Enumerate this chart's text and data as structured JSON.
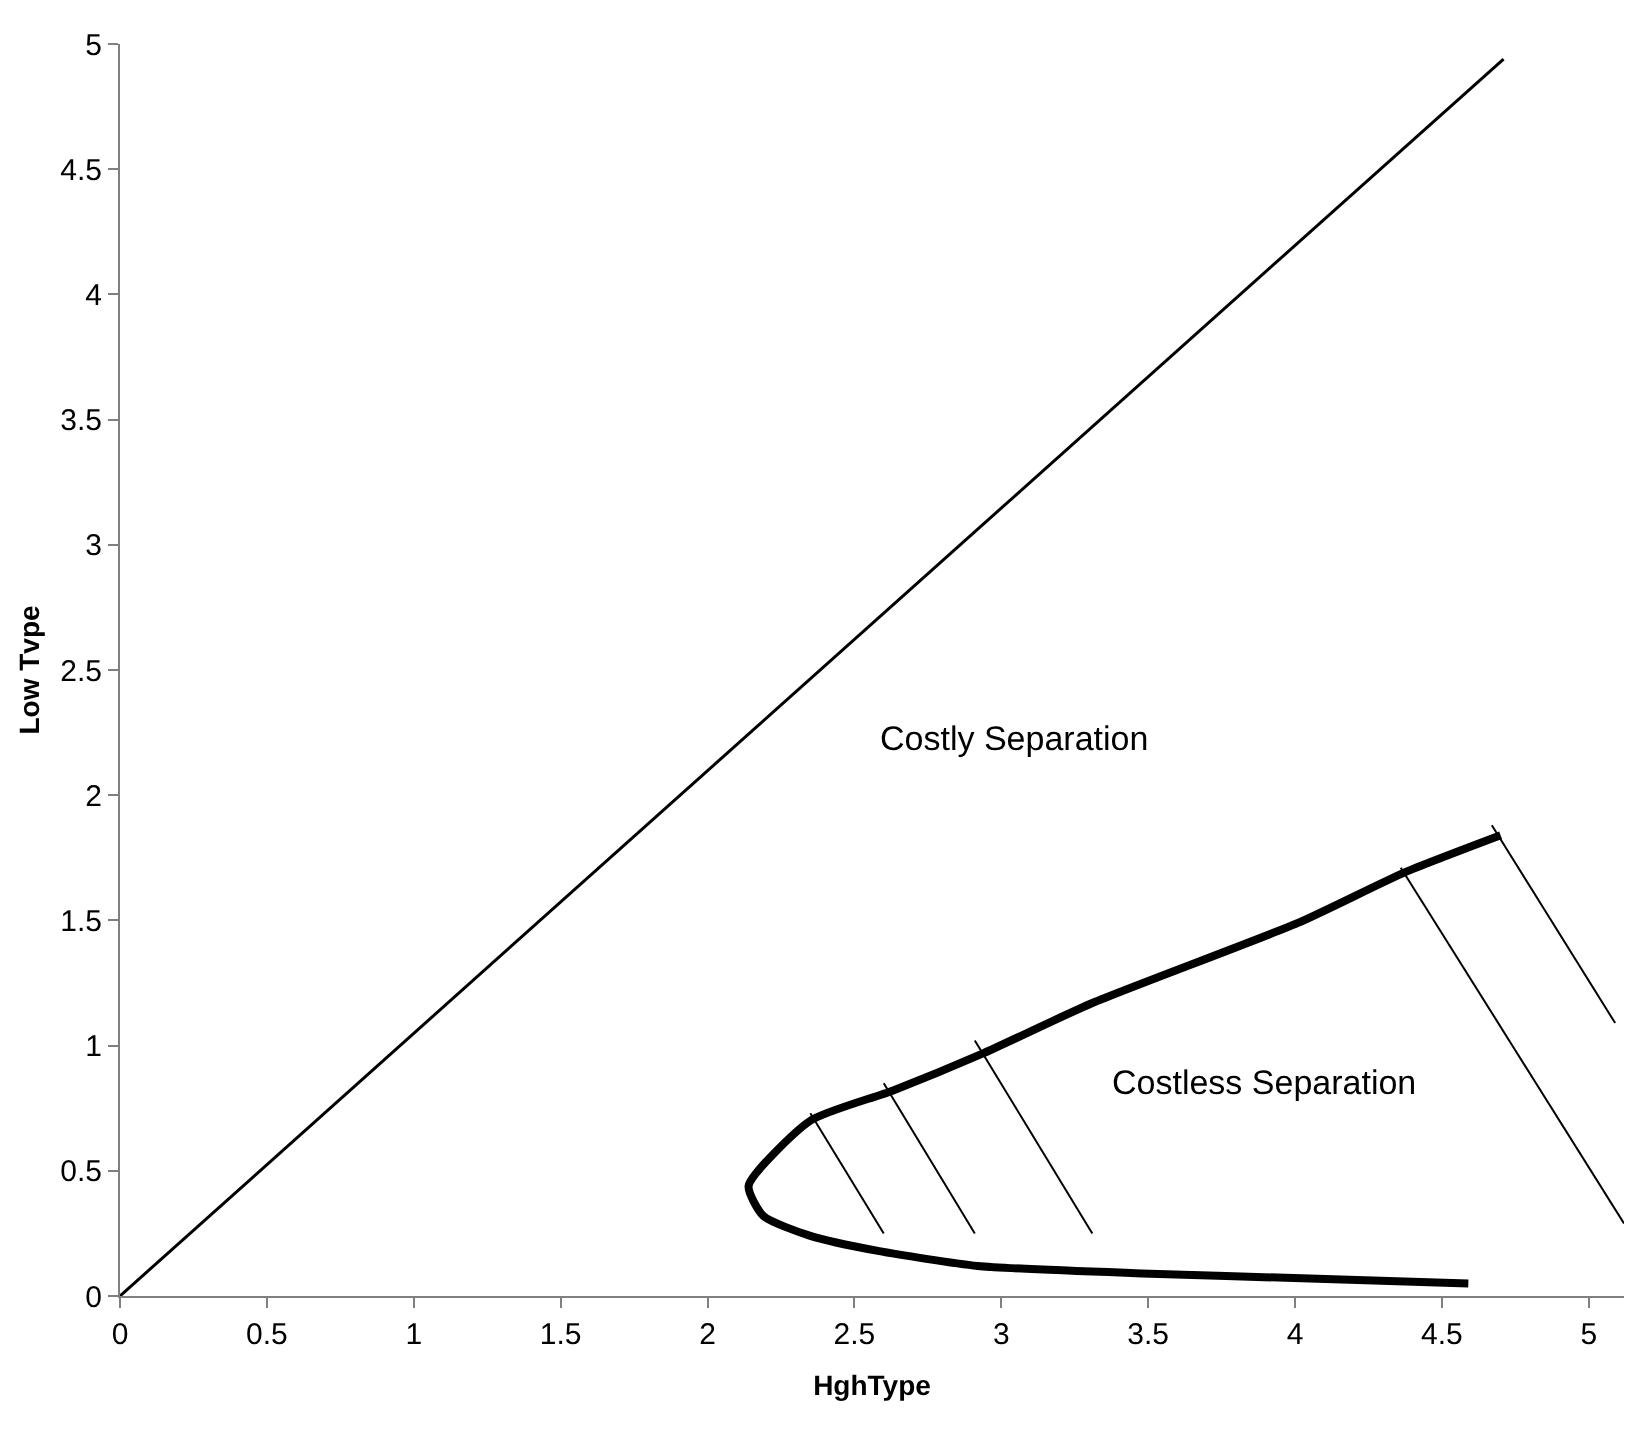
{
  "chart_data": {
    "type": "line",
    "xlabel": "HghType",
    "ylabel": "Low Tvpe",
    "xlim": [
      0,
      5.12
    ],
    "ylim": [
      0,
      5
    ],
    "xticks": [
      0,
      0.5,
      1,
      1.5,
      2,
      2.5,
      3,
      3.5,
      4,
      4.5,
      5
    ],
    "yticks": [
      0,
      0.5,
      1,
      1.5,
      2,
      2.5,
      3,
      3.5,
      4,
      4.5,
      5
    ],
    "marker": "none",
    "line_style": "solid",
    "series": [
      {
        "color": "#000000",
        "x": [
          0,
          4.71
        ],
        "values": [
          0,
          4.94
        ]
      },
      {
        "color": "#000000",
        "x": [
          4.7,
          4.37,
          4.01,
          3.31,
          2.94,
          2.63,
          2.35,
          2.14,
          2.19,
          2.35,
          2.58,
          2.92,
          3.48,
          4.05,
          4.59
        ],
        "values": [
          1.84,
          1.69,
          1.49,
          1.17,
          0.97,
          0.82,
          0.7,
          0.44,
          0.32,
          0.24,
          0.18,
          0.12,
          0.09,
          0.07,
          0.05
        ]
      },
      {
        "color": "#000000",
        "x": [
          2.35,
          2.6
        ],
        "values": [
          0.73,
          0.25
        ]
      },
      {
        "color": "#000000",
        "x": [
          2.6,
          2.91
        ],
        "values": [
          0.85,
          0.25
        ]
      },
      {
        "color": "#000000",
        "x": [
          2.91,
          3.31
        ],
        "values": [
          1.02,
          0.25
        ]
      },
      {
        "color": "#000000",
        "x": [
          4.36,
          5.12
        ],
        "values": [
          1.71,
          0.29
        ]
      },
      {
        "color": "#000000",
        "x": [
          4.67,
          5.09
        ],
        "values": [
          1.88,
          1.09
        ]
      }
    ],
    "annotations": [
      "Costly Separation",
      "Costless Separation"
    ]
  }
}
